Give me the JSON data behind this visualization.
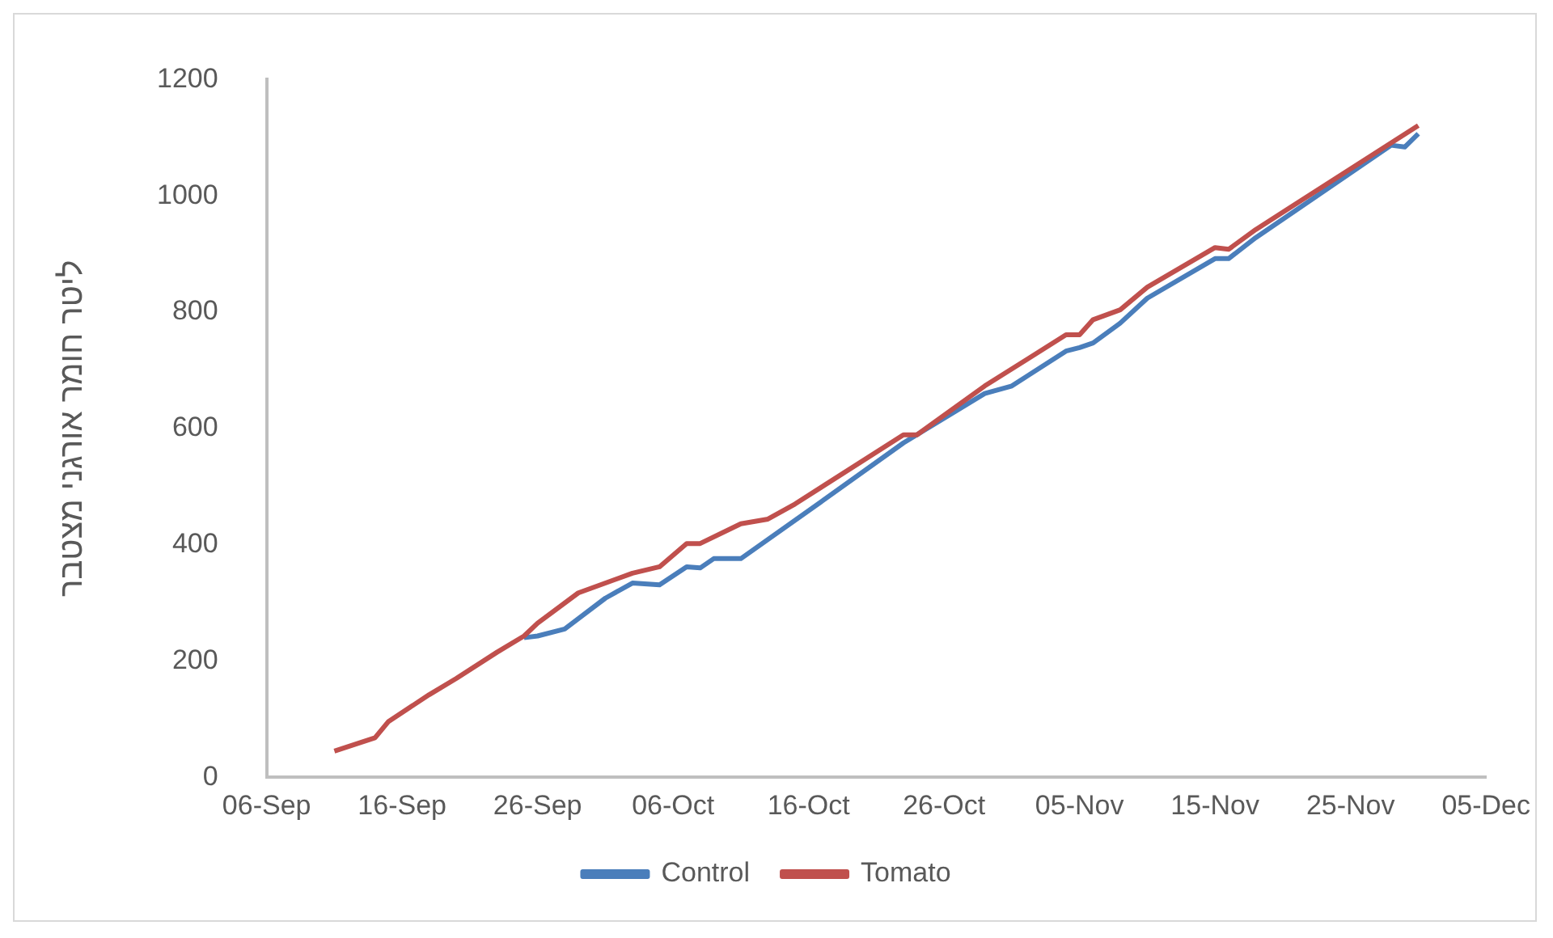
{
  "chart_data": {
    "type": "line",
    "ylabel": "ליטר חומר אורגני מצטבר",
    "xlim": [
      "--09-06",
      "--12-05"
    ],
    "xticks": [
      {
        "value": "--09-06",
        "label": "06-Sep"
      },
      {
        "value": "--09-16",
        "label": "16-Sep"
      },
      {
        "value": "--09-26",
        "label": "26-Sep"
      },
      {
        "value": "--10-06",
        "label": "06-Oct"
      },
      {
        "value": "--10-16",
        "label": "16-Oct"
      },
      {
        "value": "--10-26",
        "label": "26-Oct"
      },
      {
        "value": "--11-05",
        "label": "05-Nov"
      },
      {
        "value": "--11-15",
        "label": "15-Nov"
      },
      {
        "value": "--11-25",
        "label": "25-Nov"
      },
      {
        "value": "--12-05",
        "label": "05-Dec"
      }
    ],
    "ylim": [
      0,
      1200
    ],
    "yticks": [
      0,
      200,
      400,
      600,
      800,
      1000,
      1200
    ],
    "grid": false,
    "legend": "bottom",
    "marker": "none",
    "line_style": "solid",
    "series": [
      {
        "name": "Control",
        "color": "#4a7ebb",
        "x": [
          "--09-25",
          "--09-26",
          "--09-28",
          "--10-01",
          "--10-03",
          "--10-05",
          "--10-07",
          "--10-08",
          "--10-09",
          "--10-11",
          "--10-17",
          "--10-23",
          "--10-29",
          "--10-31",
          "--11-04",
          "--11-05",
          "--11-06",
          "--11-08",
          "--11-10",
          "--11-15",
          "--11-16",
          "--11-18",
          "--11-28",
          "--11-29",
          "--11-30"
        ],
        "values": [
          240,
          243,
          255,
          308,
          334,
          331,
          362,
          360,
          376,
          376,
          475,
          575,
          660,
          673,
          733,
          739,
          747,
          781,
          824,
          892,
          892,
          928,
          1087,
          1084,
          1107
        ]
      },
      {
        "name": "Tomato",
        "color": "#c0504d",
        "x": [
          "--09-11",
          "--09-14",
          "--09-15",
          "--09-18",
          "--09-20",
          "--09-23",
          "--09-25",
          "--09-26",
          "--09-29",
          "--10-03",
          "--10-05",
          "--10-07",
          "--10-08",
          "--10-11",
          "--10-13",
          "--10-15",
          "--10-23",
          "--10-24",
          "--10-29",
          "--11-04",
          "--11-05",
          "--11-06",
          "--11-08",
          "--11-10",
          "--11-15",
          "--11-16",
          "--11-18",
          "--11-30"
        ],
        "values": [
          45,
          68,
          96,
          142,
          170,
          215,
          243,
          265,
          317,
          351,
          362,
          402,
          402,
          436,
          444,
          470,
          589,
          589,
          673,
          761,
          761,
          787,
          804,
          843,
          911,
          908,
          942,
          1121
        ]
      }
    ]
  }
}
